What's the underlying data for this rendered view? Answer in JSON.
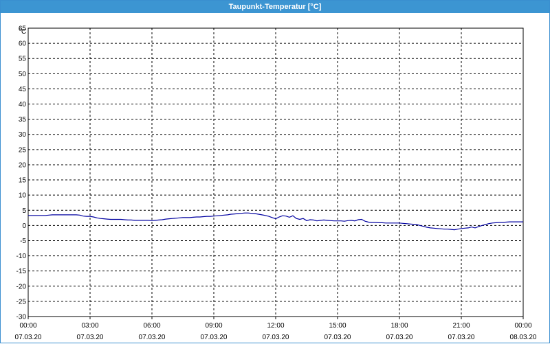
{
  "window": {
    "title": "Taupunkt-Temperatur [°C]"
  },
  "chart_data": {
    "type": "line",
    "title": "Taupunkt-Temperatur [°C]",
    "ylabel": "°C",
    "ylim": [
      -30,
      65
    ],
    "ytick_step": 5,
    "grid": true,
    "series_color": "#0000a0",
    "x_ticks": [
      {
        "time": "00:00",
        "date": "07.03.20"
      },
      {
        "time": "03:00",
        "date": "07.03.20"
      },
      {
        "time": "06:00",
        "date": "07.03.20"
      },
      {
        "time": "09:00",
        "date": "07.03.20"
      },
      {
        "time": "12:00",
        "date": "07.03.20"
      },
      {
        "time": "15:00",
        "date": "07.03.20"
      },
      {
        "time": "18:00",
        "date": "07.03.20"
      },
      {
        "time": "21:00",
        "date": "07.03.20"
      },
      {
        "time": "00:00",
        "date": "08.03.20"
      }
    ],
    "series": [
      {
        "x": [
          "00:00",
          "00:10",
          "00:20",
          "00:30",
          "00:40",
          "00:50",
          "01:00",
          "01:10",
          "01:20",
          "01:30",
          "01:40",
          "01:50",
          "02:00",
          "02:10",
          "02:20",
          "02:30",
          "02:40",
          "02:50",
          "03:00",
          "03:10",
          "03:20",
          "03:30",
          "03:40",
          "03:50",
          "04:00",
          "04:10",
          "04:20",
          "04:30",
          "04:40",
          "04:50",
          "05:00",
          "05:10",
          "05:20",
          "05:30",
          "05:40",
          "05:50",
          "06:00",
          "06:10",
          "06:20",
          "06:30",
          "06:40",
          "06:50",
          "07:00",
          "07:10",
          "07:20",
          "07:30",
          "07:40",
          "07:50",
          "08:00",
          "08:10",
          "08:20",
          "08:30",
          "08:40",
          "08:50",
          "09:00",
          "09:10",
          "09:20",
          "09:30",
          "09:40",
          "09:50",
          "10:00",
          "10:10",
          "10:20",
          "10:30",
          "10:40",
          "10:50",
          "11:00",
          "11:10",
          "11:20",
          "11:30",
          "11:40",
          "11:50",
          "12:00",
          "12:10",
          "12:20",
          "12:30",
          "12:40",
          "12:50",
          "13:00",
          "13:10",
          "13:20",
          "13:30",
          "13:40",
          "13:50",
          "14:00",
          "14:10",
          "14:20",
          "14:30",
          "14:40",
          "14:50",
          "15:00",
          "15:10",
          "15:20",
          "15:30",
          "15:40",
          "15:50",
          "16:00",
          "16:10",
          "16:20",
          "16:30",
          "16:40",
          "16:50",
          "17:00",
          "17:10",
          "17:20",
          "17:30",
          "17:40",
          "17:50",
          "18:00",
          "18:10",
          "18:20",
          "18:30",
          "18:40",
          "18:50",
          "19:00",
          "19:10",
          "19:20",
          "19:30",
          "19:40",
          "19:50",
          "20:00",
          "20:10",
          "20:20",
          "20:30",
          "20:40",
          "20:50",
          "21:00",
          "21:10",
          "21:20",
          "21:30",
          "21:40",
          "21:50",
          "22:00",
          "22:10",
          "22:20",
          "22:30",
          "22:40",
          "22:50",
          "23:00",
          "23:10",
          "23:20",
          "23:30",
          "23:40",
          "23:50"
        ],
        "values": [
          3.3,
          3.3,
          3.3,
          3.3,
          3.3,
          3.3,
          3.4,
          3.5,
          3.5,
          3.5,
          3.5,
          3.5,
          3.5,
          3.5,
          3.5,
          3.4,
          3.1,
          3.0,
          3.0,
          2.8,
          2.5,
          2.3,
          2.2,
          2.1,
          2.0,
          2.0,
          2.0,
          2.0,
          1.9,
          1.8,
          1.8,
          1.7,
          1.7,
          1.7,
          1.7,
          1.7,
          1.6,
          1.7,
          1.8,
          1.9,
          2.1,
          2.2,
          2.3,
          2.4,
          2.5,
          2.6,
          2.6,
          2.6,
          2.7,
          2.8,
          2.8,
          2.9,
          3.0,
          3.0,
          3.1,
          3.2,
          3.3,
          3.4,
          3.5,
          3.7,
          3.8,
          3.9,
          4.0,
          4.1,
          4.1,
          4.0,
          3.9,
          3.7,
          3.5,
          3.3,
          3.0,
          2.6,
          2.2,
          2.8,
          3.2,
          3.1,
          2.7,
          3.2,
          2.3,
          2.0,
          2.3,
          1.6,
          1.9,
          1.8,
          1.5,
          1.7,
          1.8,
          1.7,
          1.6,
          1.5,
          1.5,
          1.5,
          1.4,
          1.6,
          1.7,
          1.5,
          1.9,
          2.0,
          1.4,
          1.1,
          1.0,
          1.0,
          0.9,
          0.9,
          0.8,
          0.8,
          0.8,
          0.8,
          0.8,
          0.7,
          0.6,
          0.5,
          0.4,
          0.3,
          0.0,
          -0.3,
          -0.6,
          -0.8,
          -0.9,
          -1.0,
          -1.1,
          -1.2,
          -1.2,
          -1.3,
          -1.4,
          -1.2,
          -1.0,
          -0.9,
          -0.8,
          -0.5,
          -0.8,
          -0.4,
          0.0,
          0.3,
          0.6,
          0.8,
          0.9,
          1.0,
          1.0,
          1.1,
          1.2,
          1.2,
          1.2,
          1.2
        ]
      }
    ]
  }
}
